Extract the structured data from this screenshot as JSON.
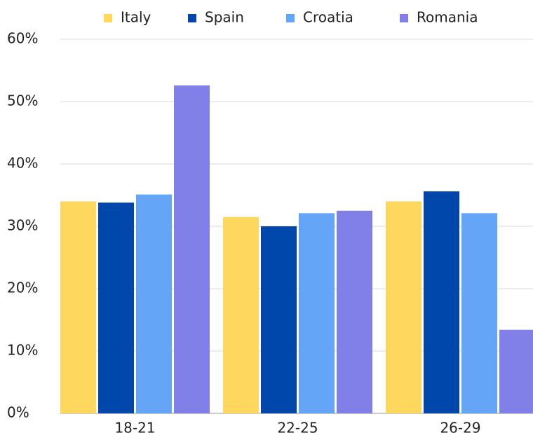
{
  "chart_data": {
    "type": "bar",
    "categories": [
      "18-21",
      "22-25",
      "26-29"
    ],
    "series": [
      {
        "name": "Italy",
        "color": "#fdd85d",
        "values": [
          34,
          31.5,
          34
        ]
      },
      {
        "name": "Spain",
        "color": "#0047ab",
        "values": [
          33.8,
          30,
          35.6
        ]
      },
      {
        "name": "Croatia",
        "color": "#64a5f8",
        "values": [
          35.1,
          32.1,
          32.1
        ]
      },
      {
        "name": "Romania",
        "color": "#8080e8",
        "values": [
          52.6,
          32.5,
          13.4
        ]
      }
    ],
    "ylim": [
      0,
      60
    ],
    "yticks": [
      {
        "value": 0,
        "label": "0%"
      },
      {
        "value": 10,
        "label": "10%"
      },
      {
        "value": 20,
        "label": "20%"
      },
      {
        "value": 30,
        "label": "30%"
      },
      {
        "value": 40,
        "label": "40%"
      },
      {
        "value": 50,
        "label": "50%"
      },
      {
        "value": 60,
        "label": "60%"
      }
    ],
    "grid": true,
    "legend": "top"
  }
}
